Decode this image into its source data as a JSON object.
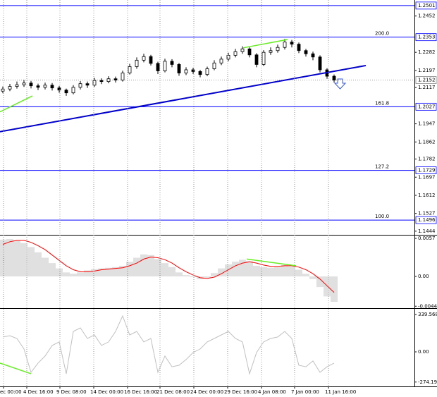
{
  "chart_data": [
    {
      "type": "candlestick",
      "xlim": [
        -0.4,
        58.4
      ],
      "ylim": [
        1.1427,
        1.2527
      ],
      "yticks": [
        1.2452,
        1.2282,
        1.2197,
        1.2117,
        1.1947,
        1.1862,
        1.1782,
        1.1697,
        1.1612,
        1.1527,
        1.1444
      ],
      "open": [
        1.21,
        1.211,
        1.2122,
        1.213,
        1.2138,
        1.2125,
        1.2118,
        1.2128,
        1.2115,
        1.2105,
        1.2092,
        1.2118,
        1.2135,
        1.2128,
        1.215,
        1.2145,
        1.2158,
        1.2152,
        1.2185,
        1.2215,
        1.2245,
        1.2262,
        1.223,
        1.2195,
        1.224,
        1.2225,
        1.2185,
        1.22,
        1.2192,
        1.2178,
        1.2205,
        1.2232,
        1.225,
        1.2268,
        1.2285,
        1.2298,
        1.227,
        1.2225,
        1.2282,
        1.229,
        1.2305,
        1.233,
        1.232,
        1.229,
        1.2275,
        1.226,
        1.22,
        1.217
      ],
      "high": [
        1.2122,
        1.2134,
        1.2145,
        1.2152,
        1.2148,
        1.2135,
        1.214,
        1.2138,
        1.2125,
        1.2112,
        1.2128,
        1.2147,
        1.2145,
        1.2162,
        1.216,
        1.217,
        1.2168,
        1.2196,
        1.2228,
        1.2258,
        1.2275,
        1.227,
        1.2238,
        1.2252,
        1.225,
        1.2232,
        1.2212,
        1.221,
        1.22,
        1.2215,
        1.2245,
        1.2262,
        1.228,
        1.2298,
        1.231,
        1.2305,
        1.2278,
        1.2292,
        1.2305,
        1.2318,
        1.2345,
        1.234,
        1.2328,
        1.2298,
        1.2285,
        1.2268,
        1.2208,
        1.2178
      ],
      "low": [
        1.209,
        1.21,
        1.2112,
        1.212,
        1.2113,
        1.2105,
        1.2108,
        1.2103,
        1.2092,
        1.2078,
        1.2085,
        1.2108,
        1.2115,
        1.212,
        1.2133,
        1.2137,
        1.214,
        1.2145,
        1.2178,
        1.2205,
        1.2235,
        1.222,
        1.218,
        1.2188,
        1.2212,
        1.2172,
        1.2175,
        1.218,
        1.2165,
        1.217,
        1.2198,
        1.2222,
        1.224,
        1.2258,
        1.2275,
        1.2258,
        1.2212,
        1.2218,
        1.227,
        1.228,
        1.2295,
        1.2305,
        1.2278,
        1.2262,
        1.2245,
        1.2188,
        1.2158,
        1.214
      ],
      "close": [
        1.211,
        1.2122,
        1.213,
        1.2138,
        1.2125,
        1.2118,
        1.2128,
        1.2115,
        1.2105,
        1.2092,
        1.2118,
        1.2135,
        1.2128,
        1.215,
        1.2145,
        1.2158,
        1.2152,
        1.2185,
        1.2215,
        1.2245,
        1.2262,
        1.223,
        1.2195,
        1.224,
        1.2225,
        1.2185,
        1.22,
        1.2192,
        1.2178,
        1.2205,
        1.2232,
        1.225,
        1.2268,
        1.2285,
        1.2298,
        1.227,
        1.2225,
        1.2282,
        1.229,
        1.2305,
        1.233,
        1.232,
        1.229,
        1.2275,
        1.226,
        1.22,
        1.217,
        1.2152
      ],
      "color": "#000000",
      "levels": [
        {
          "value": 1.2501
        },
        {
          "value": 1.2353,
          "label": "200.0"
        },
        {
          "value": 1.2027,
          "label": "161.8"
        },
        {
          "value": 1.1729,
          "label": "127.2"
        },
        {
          "value": 1.1496,
          "label": "100.0"
        }
      ],
      "level_color": "#0000ff",
      "current_price": 1.2152,
      "trend_lines": [
        {
          "x": [
            -0.4,
            51.5
          ],
          "values": [
            1.191,
            1.222
          ],
          "color": "#0000cc"
        },
        {
          "x": [
            -0.4,
            4.2
          ],
          "values": [
            1.2003,
            1.2078
          ],
          "color": "#66ee22"
        },
        {
          "x": [
            34.1,
            40.4
          ],
          "values": [
            1.2303,
            1.2342
          ],
          "color": "#66ee22"
        }
      ]
    },
    {
      "type": "macd",
      "xlim": [
        -0.4,
        58.4
      ],
      "ylim": [
        -0.00475,
        0.00602
      ],
      "yticks": [
        0.0057,
        {
          "value": 0,
          "label": "0.00"
        },
        -0.00446
      ],
      "series": [
        {
          "color": "#c0c0c0",
          "values": [
            0.0055,
            0.0056,
            0.0054,
            0.005,
            0.0044,
            0.0036,
            0.0028,
            0.002,
            0.0012,
            0.0006,
            0.0004,
            0.0006,
            0.0009,
            0.0011,
            0.0012,
            0.0013,
            0.0014,
            0.0016,
            0.0022,
            0.0028,
            0.0033,
            0.0032,
            0.0026,
            0.002,
            0.0014,
            0.0006,
            0.0002,
            -0.0001,
            -0.0004,
            -0.0002,
            0.0005,
            0.0012,
            0.0018,
            0.0022,
            0.0025,
            0.0023,
            0.0016,
            0.0014,
            0.0013,
            0.0014,
            0.0017,
            0.0015,
            0.001,
            0.0004,
            -0.0004,
            -0.0016,
            -0.003,
            -0.0038
          ]
        },
        {
          "color": "#ff0000",
          "values": [
            0.0048,
            0.0052,
            0.0054,
            0.0054,
            0.0051,
            0.0046,
            0.004,
            0.0032,
            0.0024,
            0.0016,
            0.001,
            0.0007,
            0.0007,
            0.0008,
            0.001,
            0.0011,
            0.0012,
            0.0013,
            0.0016,
            0.002,
            0.0026,
            0.0029,
            0.0028,
            0.0025,
            0.002,
            0.0013,
            0.0007,
            0.0002,
            -0.0002,
            -0.0003,
            -0.0001,
            0.0004,
            0.001,
            0.0016,
            0.002,
            0.0022,
            0.002,
            0.0017,
            0.0015,
            0.0015,
            0.0016,
            0.0016,
            0.0014,
            0.001,
            0.0004,
            -0.0004,
            -0.0014,
            -0.0024
          ]
        }
      ],
      "trend_lines": [
        {
          "x": [
            34.6,
            41.6
          ],
          "values": [
            0.0026,
            0.0016
          ],
          "color": "#66ee22"
        }
      ]
    },
    {
      "type": "line",
      "xlim": [
        -0.4,
        58.4
      ],
      "ylim": [
        -314,
        378
      ],
      "yticks": [
        339.568,
        {
          "value": 0,
          "label": "0.00"
        },
        -274.194
      ],
      "series": [
        {
          "color": "#c0c0c0",
          "values": [
            135,
            147,
            122,
            26,
            -186,
            -102,
            -38,
            58,
            90,
            -199,
            186,
            218,
            122,
            154,
            58,
            90,
            186,
            327,
            154,
            186,
            90,
            122,
            -186,
            -38,
            -135,
            -122,
            -70,
            -6,
            26,
            90,
            122,
            154,
            186,
            122,
            90,
            -199,
            -6,
            90,
            122,
            135,
            186,
            122,
            -122,
            -135,
            -83,
            -186,
            -135,
            -102
          ]
        }
      ],
      "trend_lines": [
        {
          "x": [
            -0.4,
            4.0
          ],
          "values": [
            -102,
            -199
          ],
          "color": "#66ee22"
        }
      ],
      "xticks": [
        {
          "value": 0.1,
          "label": "ec 00:00"
        },
        {
          "value": 3.4,
          "label": "4 Dec 16:00"
        },
        {
          "value": 8.1,
          "label": "9 Dec 08:00"
        },
        {
          "value": 12.9,
          "label": "14 Dec 00:00"
        },
        {
          "value": 17.7,
          "label": "16 Dec 16:00"
        },
        {
          "value": 22.3,
          "label": "21 Dec 08:00"
        },
        {
          "value": 27.1,
          "label": "24 Dec 00:00"
        },
        {
          "value": 31.9,
          "label": "29 Dec 16:00"
        },
        {
          "value": 36.7,
          "label": "4 Jan 08:00"
        },
        {
          "value": 41.4,
          "label": "7 Jan 00:00"
        },
        {
          "value": 46.2,
          "label": "11 Jan 16:00"
        }
      ]
    }
  ]
}
